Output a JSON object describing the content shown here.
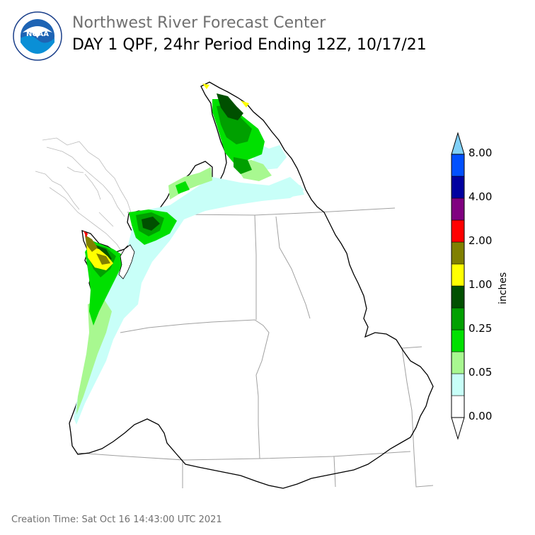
{
  "header": {
    "agency": "Northwest River Forecast Center",
    "product": "DAY 1 QPF, 24hr Period Ending 12Z, 10/17/21",
    "logo_text": "NOAA",
    "logo_ring_text": "NATIONAL OCEANIC AND ATMOSPHERIC ADMINISTRATION · U.S. DEPARTMENT OF COMMERCE"
  },
  "legend": {
    "unit_label": "inches",
    "tick_labels": [
      "8.00",
      "4.00",
      "2.00",
      "1.00",
      "0.25",
      "0.05",
      "0.00"
    ],
    "colors": [
      "#ffffff",
      "#c8fff8",
      "#a8f890",
      "#00e000",
      "#00a000",
      "#005000",
      "#ffff00",
      "#808000",
      "#ff0000",
      "#800080",
      "#0000a0",
      "#0050ff",
      "#80d0f8"
    ]
  },
  "footer": {
    "creation_time": "Creation Time: Sat Oct 16 14:43:00 UTC 2021"
  }
}
